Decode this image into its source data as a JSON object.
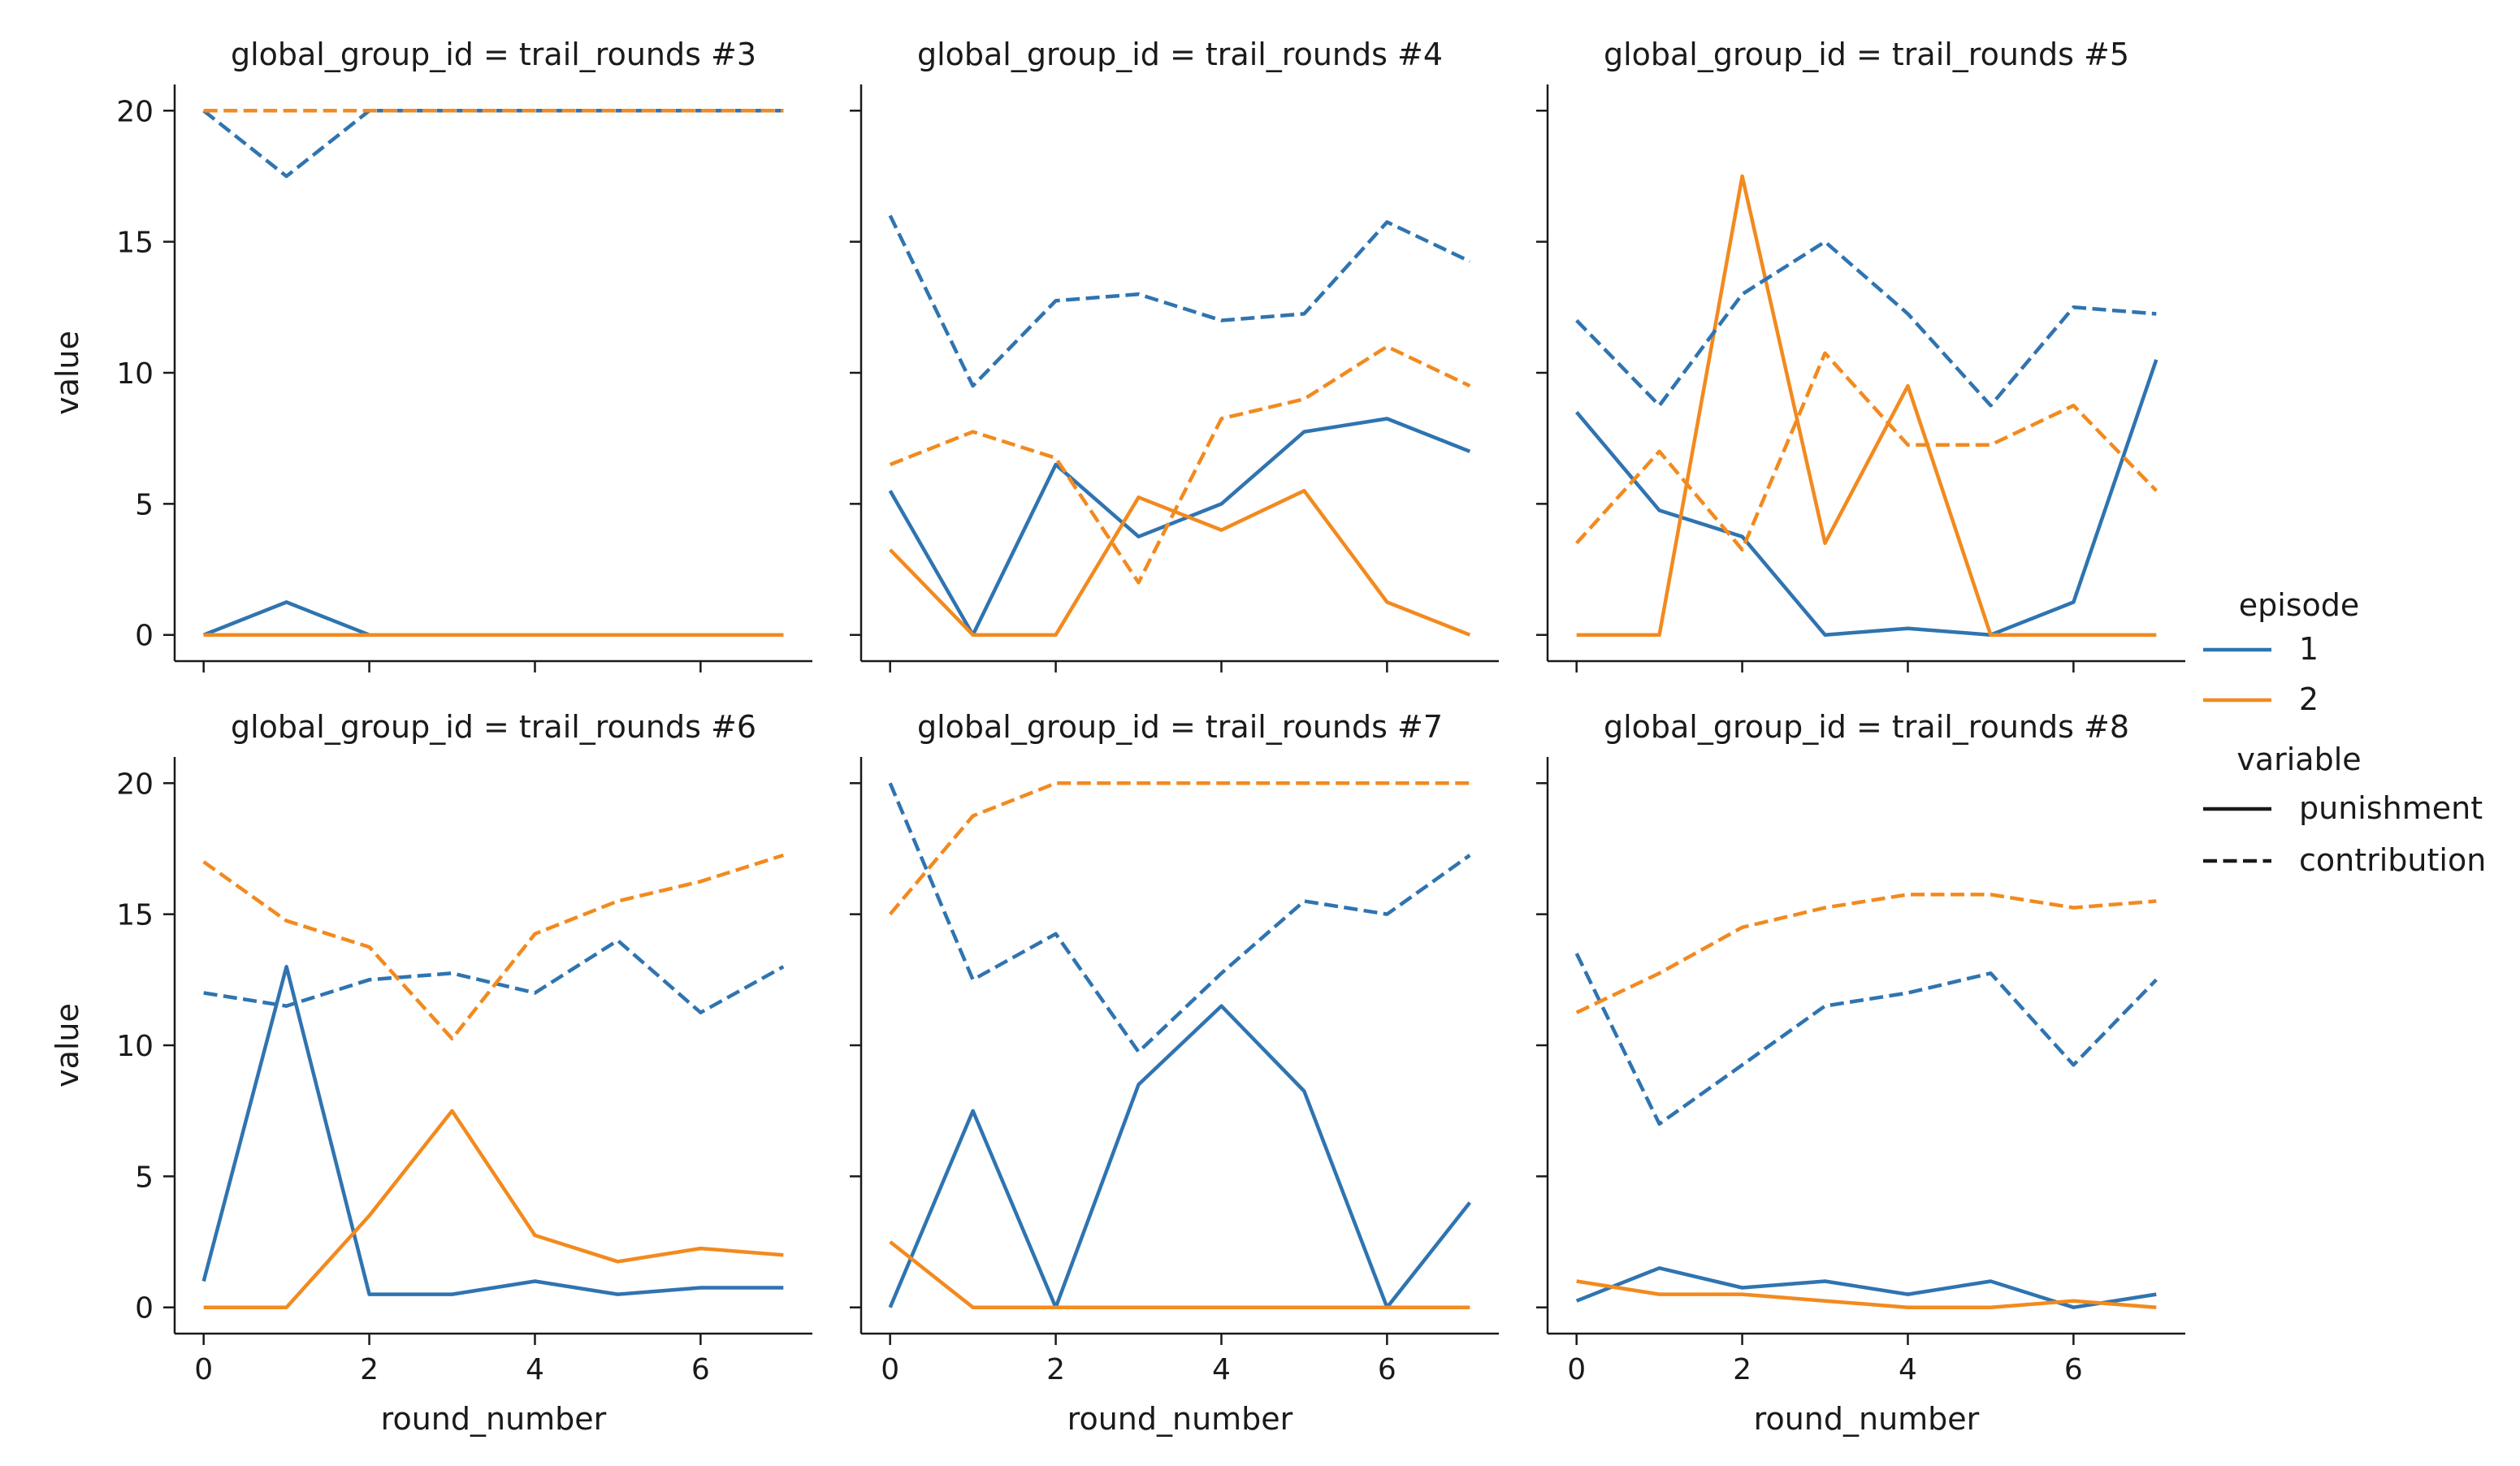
{
  "colors": {
    "episode_1": "#2f74b0",
    "episode_2": "#f28a1f",
    "axis": "#1a1a1a"
  },
  "chart_data": {
    "type": "line",
    "layout": "facet-grid",
    "x_label": "round_number",
    "y_label": "value",
    "x_ticks": [
      0,
      2,
      4,
      6
    ],
    "y_ticks": [
      0,
      5,
      10,
      15,
      20
    ],
    "xlim": [
      -0.35,
      7.35
    ],
    "ylim": [
      -1,
      21
    ],
    "x": [
      0,
      1,
      2,
      3,
      4,
      5,
      6,
      7
    ],
    "legend": {
      "placement": "right",
      "hue_title": "episode",
      "hue_entries": [
        {
          "label": "1",
          "color": "#2f74b0"
        },
        {
          "label": "2",
          "color": "#f28a1f"
        }
      ],
      "style_title": "variable",
      "style_entries": [
        {
          "label": "punishment",
          "dash": "solid"
        },
        {
          "label": "contribution",
          "dash": "dashed"
        }
      ]
    },
    "panels": [
      {
        "title": "global_group_id = trail_rounds #3",
        "series": [
          {
            "episode": "1",
            "variable": "punishment",
            "values": [
              0,
              1.25,
              0,
              0,
              0,
              0,
              0,
              0
            ]
          },
          {
            "episode": "2",
            "variable": "punishment",
            "values": [
              0,
              0,
              0,
              0,
              0,
              0,
              0,
              0
            ]
          },
          {
            "episode": "1",
            "variable": "contribution",
            "values": [
              20,
              17.5,
              20,
              20,
              20,
              20,
              20,
              20
            ]
          },
          {
            "episode": "2",
            "variable": "contribution",
            "values": [
              20,
              20,
              20,
              20,
              20,
              20,
              20,
              20
            ]
          }
        ]
      },
      {
        "title": "global_group_id = trail_rounds #4",
        "series": [
          {
            "episode": "1",
            "variable": "punishment",
            "values": [
              5.5,
              0,
              6.5,
              3.75,
              5,
              7.75,
              8.25,
              7
            ]
          },
          {
            "episode": "2",
            "variable": "punishment",
            "values": [
              3.25,
              0,
              0,
              5.25,
              4,
              5.5,
              1.25,
              0
            ]
          },
          {
            "episode": "1",
            "variable": "contribution",
            "values": [
              16,
              9.5,
              12.75,
              13,
              12,
              12.25,
              15.75,
              14.25
            ]
          },
          {
            "episode": "2",
            "variable": "contribution",
            "values": [
              6.5,
              7.75,
              6.75,
              2,
              8.25,
              9,
              11,
              9.5
            ]
          }
        ]
      },
      {
        "title": "global_group_id = trail_rounds #5",
        "series": [
          {
            "episode": "1",
            "variable": "punishment",
            "values": [
              8.5,
              4.75,
              3.75,
              0,
              0.25,
              0,
              1.25,
              10.5
            ]
          },
          {
            "episode": "2",
            "variable": "punishment",
            "values": [
              0,
              0,
              17.5,
              3.5,
              9.5,
              0,
              0,
              0
            ]
          },
          {
            "episode": "1",
            "variable": "contribution",
            "values": [
              12,
              8.75,
              13,
              15,
              12.25,
              8.75,
              12.5,
              12.25
            ]
          },
          {
            "episode": "2",
            "variable": "contribution",
            "values": [
              3.5,
              7,
              3.25,
              10.75,
              7.25,
              7.25,
              8.75,
              5.5
            ]
          }
        ]
      },
      {
        "title": "global_group_id = trail_rounds #6",
        "series": [
          {
            "episode": "1",
            "variable": "punishment",
            "values": [
              1,
              13,
              0.5,
              0.5,
              1,
              0.5,
              0.75,
              0.75
            ]
          },
          {
            "episode": "2",
            "variable": "punishment",
            "values": [
              0,
              0,
              3.5,
              7.5,
              2.75,
              1.75,
              2.25,
              2
            ]
          },
          {
            "episode": "1",
            "variable": "contribution",
            "values": [
              12,
              11.5,
              12.5,
              12.75,
              12,
              14,
              11.25,
              13
            ]
          },
          {
            "episode": "2",
            "variable": "contribution",
            "values": [
              17,
              14.75,
              13.75,
              10.25,
              14.25,
              15.5,
              16.25,
              17.25
            ]
          }
        ]
      },
      {
        "title": "global_group_id = trail_rounds #7",
        "series": [
          {
            "episode": "1",
            "variable": "punishment",
            "values": [
              0,
              7.5,
              0,
              8.5,
              11.5,
              8.25,
              0,
              4
            ]
          },
          {
            "episode": "2",
            "variable": "punishment",
            "values": [
              2.5,
              0,
              0,
              0,
              0,
              0,
              0,
              0
            ]
          },
          {
            "episode": "1",
            "variable": "contribution",
            "values": [
              20,
              12.5,
              14.25,
              9.75,
              12.75,
              15.5,
              15,
              17.25
            ]
          },
          {
            "episode": "2",
            "variable": "contribution",
            "values": [
              15,
              18.75,
              20,
              20,
              20,
              20,
              20,
              20
            ]
          }
        ]
      },
      {
        "title": "global_group_id = trail_rounds #8",
        "series": [
          {
            "episode": "1",
            "variable": "punishment",
            "values": [
              0.25,
              1.5,
              0.75,
              1,
              0.5,
              1,
              0,
              0.5
            ]
          },
          {
            "episode": "2",
            "variable": "punishment",
            "values": [
              1,
              0.5,
              0.5,
              0.25,
              0,
              0,
              0.25,
              0
            ]
          },
          {
            "episode": "1",
            "variable": "contribution",
            "values": [
              13.5,
              7,
              9.25,
              11.5,
              12,
              12.75,
              9.25,
              12.5
            ]
          },
          {
            "episode": "2",
            "variable": "contribution",
            "values": [
              11.25,
              12.75,
              14.5,
              15.25,
              15.75,
              15.75,
              15.25,
              15.5
            ]
          }
        ]
      }
    ]
  }
}
